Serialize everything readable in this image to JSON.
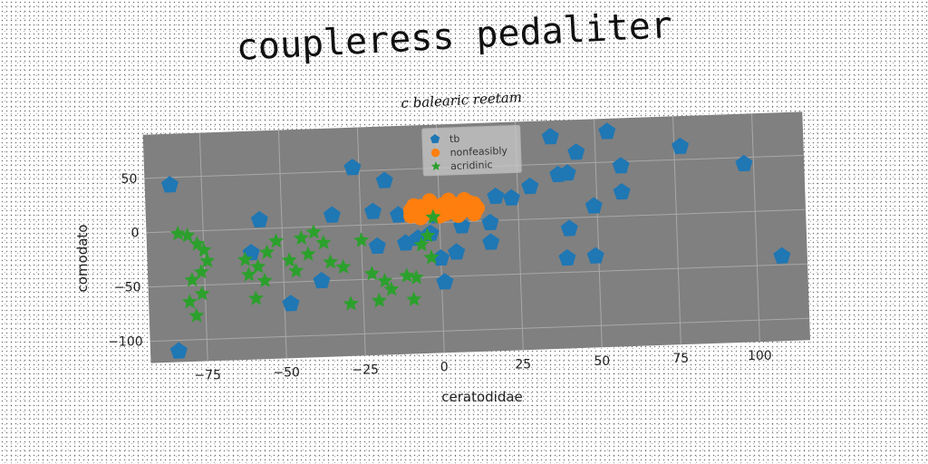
{
  "chart_data": {
    "type": "scatter",
    "title": "coupleress pedaliter",
    "subtitle": "c balearic reetam",
    "xlabel": "ceratodidae",
    "ylabel": "comodato",
    "xlim": [
      -93,
      116
    ],
    "ylim": [
      -120,
      90
    ],
    "xticks": [
      -75,
      -50,
      -25,
      0,
      25,
      50,
      75,
      100
    ],
    "yticks": [
      -100,
      -50,
      0,
      50
    ],
    "grid": true,
    "legend_position": "top-center",
    "plot_background": "#808080",
    "series": [
      {
        "name": "tb",
        "marker": "pentagon",
        "color": "#1f77b4",
        "points": [
          {
            "x": -85,
            "y": 43
          },
          {
            "x": -84,
            "y": -110
          },
          {
            "x": -57,
            "y": 8
          },
          {
            "x": -60,
            "y": -22
          },
          {
            "x": -48,
            "y": -70
          },
          {
            "x": -38,
            "y": -50
          },
          {
            "x": -34,
            "y": 10
          },
          {
            "x": -27,
            "y": 53
          },
          {
            "x": -21,
            "y": 12
          },
          {
            "x": -20,
            "y": -20
          },
          {
            "x": -17,
            "y": 40
          },
          {
            "x": -13,
            "y": 8
          },
          {
            "x": -11,
            "y": -18
          },
          {
            "x": -7,
            "y": -14
          },
          {
            "x": -3,
            "y": -10
          },
          {
            "x": -1,
            "y": 6
          },
          {
            "x": 0,
            "y": -33
          },
          {
            "x": 1,
            "y": -55
          },
          {
            "x": 2,
            "y": 12
          },
          {
            "x": 5,
            "y": -28
          },
          {
            "x": 7,
            "y": -4
          },
          {
            "x": 10,
            "y": 10
          },
          {
            "x": 16,
            "y": -2
          },
          {
            "x": 18,
            "y": 22
          },
          {
            "x": 16,
            "y": -20
          },
          {
            "x": 23,
            "y": 20
          },
          {
            "x": 29,
            "y": 30
          },
          {
            "x": 36,
            "y": 75
          },
          {
            "x": 38,
            "y": 40
          },
          {
            "x": 41,
            "y": 41
          },
          {
            "x": 44,
            "y": 60
          },
          {
            "x": 41,
            "y": -10
          },
          {
            "x": 40,
            "y": -37
          },
          {
            "x": 49,
            "y": 10
          },
          {
            "x": 49,
            "y": -36
          },
          {
            "x": 54,
            "y": 78
          },
          {
            "x": 58,
            "y": 46
          },
          {
            "x": 58,
            "y": 22
          },
          {
            "x": 77,
            "y": 62
          },
          {
            "x": 97,
            "y": 44
          },
          {
            "x": 108,
            "y": -42
          }
        ]
      },
      {
        "name": "nonfeasibly",
        "marker": "circle",
        "color": "#ff7f0e",
        "points": [
          {
            "x": -9,
            "y": 12
          },
          {
            "x": -8,
            "y": 16
          },
          {
            "x": -7,
            "y": 10
          },
          {
            "x": -6,
            "y": 15
          },
          {
            "x": -5,
            "y": 8
          },
          {
            "x": -4,
            "y": 13
          },
          {
            "x": -3,
            "y": 17
          },
          {
            "x": -2,
            "y": 9
          },
          {
            "x": -1,
            "y": 14
          },
          {
            "x": 0,
            "y": 11
          },
          {
            "x": 1,
            "y": 16
          },
          {
            "x": 2,
            "y": 8
          },
          {
            "x": 3,
            "y": 13
          },
          {
            "x": 4,
            "y": 17
          },
          {
            "x": 5,
            "y": 10
          },
          {
            "x": 6,
            "y": 15
          },
          {
            "x": 7,
            "y": 9
          },
          {
            "x": 8,
            "y": 14
          },
          {
            "x": 9,
            "y": 18
          },
          {
            "x": 10,
            "y": 11
          },
          {
            "x": 11,
            "y": 16
          },
          {
            "x": 12,
            "y": 12
          },
          {
            "x": -6,
            "y": 5
          },
          {
            "x": 0,
            "y": 6
          },
          {
            "x": 6,
            "y": 6
          },
          {
            "x": 11,
            "y": 7
          },
          {
            "x": -9,
            "y": 7
          },
          {
            "x": 3,
            "y": 20
          },
          {
            "x": 8,
            "y": 20
          },
          {
            "x": -3,
            "y": 20
          }
        ]
      },
      {
        "name": "acridinic",
        "marker": "star",
        "color": "#2ca02c",
        "points": [
          {
            "x": -83,
            "y": -2
          },
          {
            "x": -80,
            "y": -4
          },
          {
            "x": -77,
            "y": -12
          },
          {
            "x": -75,
            "y": -18
          },
          {
            "x": -74,
            "y": -28
          },
          {
            "x": -76,
            "y": -38
          },
          {
            "x": -79,
            "y": -45
          },
          {
            "x": -76,
            "y": -58
          },
          {
            "x": -80,
            "y": -65
          },
          {
            "x": -78,
            "y": -78
          },
          {
            "x": -62,
            "y": -28
          },
          {
            "x": -61,
            "y": -42
          },
          {
            "x": -58,
            "y": -35
          },
          {
            "x": -56,
            "y": -48
          },
          {
            "x": -55,
            "y": -22
          },
          {
            "x": -59,
            "y": -64
          },
          {
            "x": -52,
            "y": -12
          },
          {
            "x": -48,
            "y": -30
          },
          {
            "x": -46,
            "y": -40
          },
          {
            "x": -44,
            "y": -10
          },
          {
            "x": -42,
            "y": -25
          },
          {
            "x": -40,
            "y": -5
          },
          {
            "x": -37,
            "y": -15
          },
          {
            "x": -35,
            "y": -33
          },
          {
            "x": -31,
            "y": -38
          },
          {
            "x": -29,
            "y": -72
          },
          {
            "x": -25,
            "y": -14
          },
          {
            "x": -22,
            "y": -45
          },
          {
            "x": -20,
            "y": -70
          },
          {
            "x": -18,
            "y": -52
          },
          {
            "x": -16,
            "y": -60
          },
          {
            "x": -11,
            "y": -48
          },
          {
            "x": -9,
            "y": -70
          },
          {
            "x": -6,
            "y": -20
          },
          {
            "x": -4,
            "y": -12
          },
          {
            "x": -3,
            "y": -32
          },
          {
            "x": -2,
            "y": 5
          },
          {
            "x": -8,
            "y": -50
          }
        ]
      }
    ]
  }
}
